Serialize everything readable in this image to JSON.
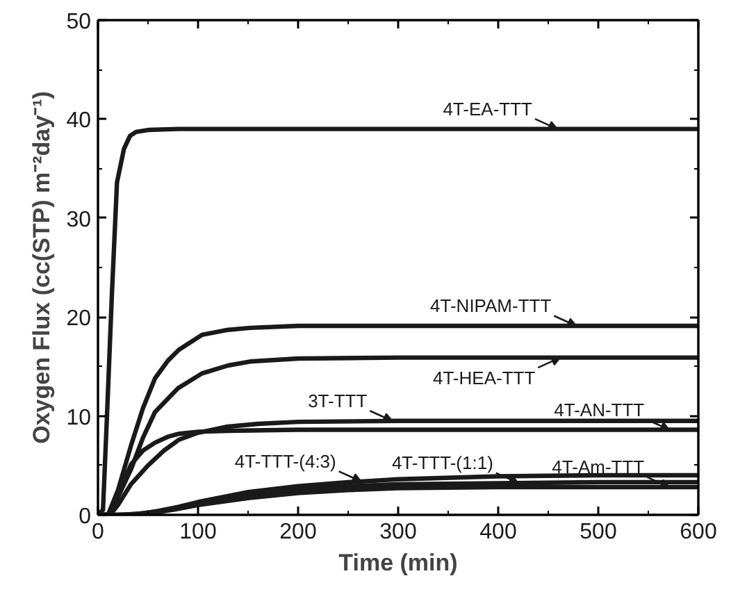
{
  "chart_data": {
    "type": "line",
    "xlabel": "Time (min)",
    "ylabel": "Oxygen Flux (cc(STP) m⁻²day⁻¹)",
    "xlim": [
      0,
      600
    ],
    "ylim": [
      0,
      50
    ],
    "xticks": [
      0,
      100,
      200,
      300,
      400,
      500,
      600
    ],
    "yticks": [
      0,
      10,
      20,
      30,
      40,
      50
    ],
    "grid": false,
    "marker": "none",
    "line_style": "solid",
    "series": [
      {
        "color": "#1a1a1a",
        "x": [
          0,
          5,
          9,
          14,
          19,
          26,
          32,
          38,
          50,
          80,
          150,
          300,
          600
        ],
        "values": [
          0,
          0.5,
          10,
          22.5,
          33.6,
          37,
          38.3,
          38.7,
          38.9,
          39,
          39,
          39,
          39
        ]
      },
      {
        "color": "#1a1a1a",
        "x": [
          0,
          10,
          20,
          33,
          45,
          57,
          70,
          81,
          104,
          130,
          152,
          200,
          300,
          600
        ],
        "values": [
          0,
          0,
          2.5,
          7,
          10.8,
          13.8,
          15.6,
          16.7,
          18.2,
          18.7,
          18.9,
          19.1,
          19.1,
          19.1
        ]
      },
      {
        "color": "#1a1a1a",
        "x": [
          0,
          12,
          20,
          33,
          45,
          57,
          80,
          104,
          130,
          152,
          200,
          300,
          600
        ],
        "values": [
          0,
          0,
          1.8,
          4.6,
          7.8,
          10.4,
          12.8,
          14.3,
          15.1,
          15.5,
          15.8,
          15.9,
          15.9
        ]
      },
      {
        "color": "#1a1a1a",
        "x": [
          0,
          12,
          20,
          33,
          50,
          66,
          81,
          100,
          128,
          160,
          200,
          300,
          600
        ],
        "values": [
          0,
          0,
          1,
          3.1,
          5,
          6.5,
          7.6,
          8.3,
          8.9,
          9.2,
          9.4,
          9.5,
          9.5
        ]
      },
      {
        "color": "#1a1a1a",
        "x": [
          0,
          12,
          20,
          33,
          45,
          57,
          70,
          81,
          100,
          130,
          200,
          300,
          600
        ],
        "values": [
          0,
          0,
          2,
          5.1,
          6.5,
          7.3,
          7.9,
          8.2,
          8.4,
          8.5,
          8.6,
          8.6,
          8.6
        ]
      },
      {
        "color": "#1a1a1a",
        "x": [
          0,
          20,
          40,
          60,
          80,
          100,
          150,
          200,
          250,
          300,
          400,
          500,
          600
        ],
        "values": [
          0,
          0,
          0.1,
          0.4,
          0.8,
          1.3,
          2.3,
          2.9,
          3.3,
          3.6,
          3.9,
          4,
          4
        ]
      },
      {
        "color": "#1a1a1a",
        "x": [
          0,
          25,
          50,
          75,
          100,
          150,
          200,
          250,
          300,
          400,
          500,
          600
        ],
        "values": [
          0,
          0,
          0.2,
          0.6,
          1.1,
          1.9,
          2.5,
          2.9,
          3.1,
          3.2,
          3.3,
          3.3
        ]
      },
      {
        "color": "#1a1a1a",
        "x": [
          0,
          30,
          55,
          80,
          100,
          150,
          200,
          250,
          300,
          400,
          500,
          600
        ],
        "values": [
          0,
          0,
          0.2,
          0.6,
          1,
          1.7,
          2.2,
          2.5,
          2.7,
          2.8,
          2.8,
          2.8
        ]
      }
    ],
    "annotations": [
      {
        "text": "4T-EA-TTT",
        "x": 459,
        "y": 39
      },
      {
        "text": "4T-NIPAM-TTT",
        "x": 478,
        "y": 19.1
      },
      {
        "text": "4T-HEA-TTT",
        "x": 462,
        "y": 15.9
      },
      {
        "text": "3T-TTT",
        "x": 294,
        "y": 9.5
      },
      {
        "text": "4T-AN-TTT",
        "x": 571,
        "y": 8.6
      },
      {
        "text": "4T-TTT-(4:3)",
        "x": 263,
        "y": 3.38
      },
      {
        "text": "4T-TTT-(1:1)",
        "x": 420,
        "y": 3.22
      },
      {
        "text": "4T-Am-TTT",
        "x": 571,
        "y": 2.8
      }
    ]
  }
}
